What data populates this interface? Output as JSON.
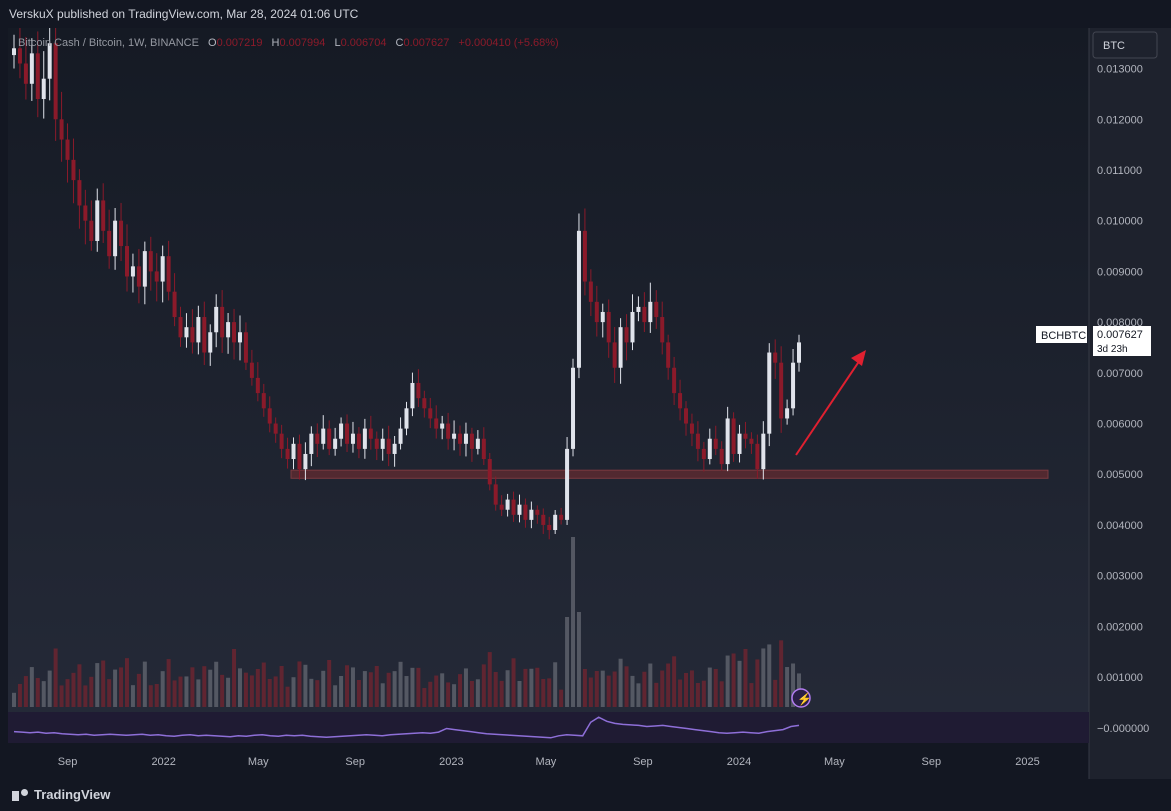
{
  "header": {
    "published_by": "VerskuX published on TradingView.com, Mar 28, 2024 01:06 UTC"
  },
  "legend": {
    "symbol": "Bitcoin Cash / Bitcoin, 1W, BINANCE",
    "o_label": "O",
    "o_value": "0.007219",
    "h_label": "H",
    "h_value": "0.007994",
    "l_label": "L",
    "l_value": "0.006704",
    "c_label": "C",
    "c_value": "0.007627",
    "change": "+0.000410 (+5.68%)"
  },
  "scale": {
    "currency_button": "BTC"
  },
  "price_tag": {
    "ticker": "BCHBTC",
    "price": "0.007627",
    "countdown": "3d 23h"
  },
  "footer": {
    "brand": "TradingView"
  },
  "colors": {
    "background": "#131722",
    "up": "#e0e3eb",
    "down": "#8b1a2a",
    "support_band": "#5c2a30",
    "arrow": "#e02030",
    "rsi_line": "#8e6fd8",
    "axis_text": "#b2b5be"
  },
  "chart_data": {
    "type": "candlestick",
    "ylim": [
      -0.0003,
      0.0138
    ],
    "y_ticks": [
      "0.013000",
      "0.012000",
      "0.011000",
      "0.010000",
      "0.009000",
      "0.008000",
      "0.007000",
      "0.006000",
      "0.005000",
      "0.004000",
      "0.003000",
      "0.002000",
      "0.001000",
      "−0.000000"
    ],
    "y_tick_values": [
      0.013,
      0.012,
      0.011,
      0.01,
      0.009,
      0.008,
      0.007,
      0.006,
      0.005,
      0.004,
      0.003,
      0.002,
      0.001,
      0.0
    ],
    "x_ticks": [
      "Sep",
      "2022",
      "May",
      "Sep",
      "2023",
      "May",
      "Sep",
      "2024",
      "May",
      "Sep",
      "2025"
    ],
    "x_tick_dates": [
      "2021-09-01",
      "2022-01-01",
      "2022-05-01",
      "2022-09-01",
      "2023-01-01",
      "2023-05-01",
      "2023-09-01",
      "2024-01-01",
      "2024-05-01",
      "2024-09-01",
      "2025-01-01"
    ],
    "support_zone": [
      0.00492,
      0.00508
    ],
    "close_series": [
      0.0134,
      0.0131,
      0.0127,
      0.0133,
      0.0124,
      0.0128,
      0.0135,
      0.012,
      0.0116,
      0.0112,
      0.0108,
      0.0103,
      0.01,
      0.0096,
      0.0104,
      0.0098,
      0.0093,
      0.01,
      0.0095,
      0.0089,
      0.0091,
      0.0087,
      0.0094,
      0.009,
      0.0088,
      0.0093,
      0.0086,
      0.0081,
      0.0077,
      0.0079,
      0.0076,
      0.0081,
      0.0074,
      0.0078,
      0.0083,
      0.0077,
      0.008,
      0.0076,
      0.0078,
      0.0072,
      0.0069,
      0.0066,
      0.0063,
      0.006,
      0.0058,
      0.0055,
      0.0053,
      0.0056,
      0.0051,
      0.0054,
      0.0058,
      0.0056,
      0.0059,
      0.0055,
      0.0057,
      0.006,
      0.0056,
      0.0058,
      0.0055,
      0.0059,
      0.0057,
      0.0055,
      0.0057,
      0.0054,
      0.0056,
      0.0059,
      0.0063,
      0.0068,
      0.0065,
      0.0063,
      0.0061,
      0.0059,
      0.006,
      0.0057,
      0.0058,
      0.0056,
      0.0058,
      0.0055,
      0.0057,
      0.0053,
      0.0048,
      0.0044,
      0.0043,
      0.0045,
      0.0042,
      0.0044,
      0.0041,
      0.0043,
      0.0042,
      0.004,
      0.0039,
      0.0042,
      0.0041,
      0.0055,
      0.0071,
      0.0098,
      0.0088,
      0.0084,
      0.008,
      0.0082,
      0.0076,
      0.0071,
      0.0079,
      0.0076,
      0.0082,
      0.0083,
      0.008,
      0.0084,
      0.0081,
      0.0076,
      0.0071,
      0.0066,
      0.0063,
      0.006,
      0.0058,
      0.0055,
      0.0053,
      0.0057,
      0.0055,
      0.0052,
      0.0061,
      0.0054,
      0.0058,
      0.0057,
      0.0056,
      0.0051,
      0.0058,
      0.0074,
      0.0072,
      0.0061,
      0.0063,
      0.0072,
      0.0076
    ],
    "volume_peak": {
      "label": "spike",
      "value_ratio": 1.0
    },
    "rsi_series": [
      52,
      51,
      50,
      51,
      49,
      50,
      48,
      47,
      46,
      47,
      45,
      46,
      47,
      46,
      45,
      46,
      47,
      45,
      46,
      44,
      43,
      45,
      46,
      44,
      45,
      44,
      43,
      42,
      44,
      43,
      45,
      46,
      44,
      43,
      45,
      44,
      45,
      43,
      42,
      41,
      42,
      43,
      44,
      45,
      46,
      45,
      44,
      46,
      47,
      48,
      49,
      50,
      49,
      51,
      58,
      56,
      54,
      52,
      50,
      48,
      47,
      46,
      45,
      44,
      43,
      42,
      41,
      40,
      44,
      46,
      45,
      44,
      70,
      80,
      72,
      68,
      66,
      65,
      64,
      62,
      63,
      64,
      62,
      60,
      58,
      56,
      54,
      52,
      50,
      49,
      50,
      51,
      50,
      49,
      52,
      54,
      56,
      62,
      64
    ]
  }
}
